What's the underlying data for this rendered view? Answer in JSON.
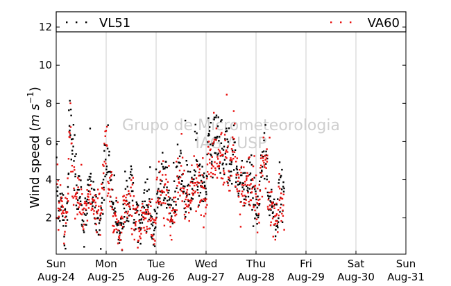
{
  "chart_data": {
    "type": "scatter",
    "ylabel": "Wind speed",
    "ylabel_unit_base": "m s",
    "ylabel_unit_exp": "−1",
    "ylim": [
      0.1,
      12.8
    ],
    "yticks": [
      2,
      4,
      6,
      8,
      10,
      12
    ],
    "xlim": [
      "2014-08-24 00:00",
      "2014-08-31 00:00"
    ],
    "xticks": [
      {
        "day": "Sun",
        "date": "Aug-24"
      },
      {
        "day": "Mon",
        "date": "Aug-25"
      },
      {
        "day": "Tue",
        "date": "Aug-26"
      },
      {
        "day": "Wed",
        "date": "Aug-27"
      },
      {
        "day": "Thu",
        "date": "Aug-28"
      },
      {
        "day": "Fri",
        "date": "Aug-29"
      },
      {
        "day": "Sat",
        "date": "Aug-30"
      },
      {
        "day": "Sun",
        "date": "Aug-31"
      }
    ],
    "grid": "vertical",
    "legend_position": "top",
    "watermark": [
      "Grupo de Micrometeorologia",
      "IAG / USP"
    ],
    "sampling_minutes": 30,
    "series": [
      {
        "name": "VL51",
        "color": "#000000",
        "values": [
          4.4,
          3.0,
          2.5,
          2.6,
          2.9,
          2.5,
          2.1,
          1.3,
          1.7,
          1.8,
          2.7,
          3.9,
          6.3,
          7.3,
          6.4,
          5.8,
          5.7,
          4.9,
          4.3,
          3.8,
          3.1,
          3.0,
          3.1,
          3.4,
          2.3,
          1.9,
          1.4,
          2.3,
          2.4,
          2.5,
          3.0,
          3.5,
          3.1,
          3.2,
          3.0,
          3.4,
          2.7,
          2.3,
          2.3,
          2.0,
          1.8,
          2.1,
          2.0,
          2.7,
          3.2,
          3.8,
          4.3,
          5.5,
          5.4,
          5.2,
          4.5,
          3.9,
          3.8,
          3.6,
          2.7,
          2.2,
          2.2,
          2.5,
          1.6,
          1.2,
          1.4,
          1.4,
          1.2,
          1.8,
          2.0,
          2.4,
          3.2,
          3.0,
          3.1,
          3.2,
          3.3,
          3.6,
          4.2,
          3.5,
          2.1,
          1.6,
          1.8,
          2.1,
          1.7,
          1.6,
          1.4,
          1.9,
          2.3,
          2.7,
          3.3,
          2.8,
          2.8,
          2.9,
          2.5,
          2.1,
          2.5,
          1.8,
          1.2,
          1.2,
          1.2,
          1.6,
          3.2,
          3.5,
          3.2,
          3.6,
          3.7,
          3.7,
          4.6,
          3.7,
          4.1,
          3.8,
          3.7,
          3.2,
          2.6,
          2.5,
          2.6,
          2.4,
          2.4,
          3.0,
          3.2,
          3.6,
          4.5,
          4.6,
          4.8,
          4.7,
          4.2,
          3.4,
          3.2,
          3.6,
          3.1,
          3.6,
          3.3,
          3.1,
          2.9,
          3.6,
          3.5,
          3.0,
          4.1,
          4.9,
          4.3,
          4.2,
          4.1,
          4.2,
          3.6,
          3.5,
          3.6,
          3.7,
          3.8,
          3.1,
          3.6,
          5.4,
          6.6,
          6.8,
          5.1,
          4.7,
          5.2,
          6.1,
          5.8,
          6.0,
          6.0,
          6.4,
          5.8,
          5.4,
          5.9,
          5.2,
          4.8,
          5.6,
          5.8,
          5.6,
          5.4,
          4.9,
          4.3,
          4.8,
          5.1,
          5.3,
          5.8,
          5.2,
          4.5,
          4.5,
          4.2,
          3.8,
          3.4,
          3.6,
          4.1,
          3.8,
          3.2,
          3.6,
          3.8,
          4.2,
          3.9,
          4.2,
          3.6,
          3.9,
          3.4,
          3.0,
          3.1,
          2.8,
          2.6,
          2.5,
          2.6,
          3.5,
          4.4,
          4.7,
          4.8,
          5.4,
          5.2,
          5.0,
          4.2,
          4.1,
          2.9,
          2.5,
          2.9,
          2.6,
          2.1,
          2.6,
          2.0,
          2.3,
          2.5,
          2.4,
          3.1,
          3.7,
          3.3,
          3.2,
          3.2
        ]
      },
      {
        "name": "VA60",
        "color": "#e8110f",
        "values": [
          2.5,
          3.6,
          2.2,
          2.7,
          3.0,
          2.9,
          2.9,
          1.4,
          2.3,
          2.2,
          2.9,
          3.6,
          6.6,
          7.0,
          5.3,
          4.1,
          4.2,
          4.3,
          3.5,
          3.0,
          3.2,
          3.1,
          3.0,
          3.2,
          2.6,
          2.0,
          2.0,
          3.0,
          2.0,
          2.6,
          2.6,
          3.0,
          2.7,
          2.9,
          2.6,
          2.8,
          3.0,
          2.5,
          2.1,
          2.6,
          2.6,
          2.8,
          2.0,
          2.7,
          2.9,
          4.7,
          5.9,
          5.7,
          5.5,
          3.3,
          3.6,
          3.2,
          3.6,
          3.8,
          1.9,
          1.4,
          2.0,
          2.2,
          2.0,
          1.3,
          1.0,
          1.5,
          1.3,
          1.6,
          2.7,
          2.4,
          3.1,
          2.6,
          2.6,
          3.0,
          2.5,
          3.5,
          2.6,
          3.6,
          2.5,
          1.6,
          1.7,
          2.6,
          1.3,
          1.3,
          1.2,
          1.6,
          3.0,
          2.4,
          2.1,
          2.2,
          1.7,
          2.2,
          2.2,
          2.1,
          1.9,
          1.4,
          1.4,
          1.6,
          1.2,
          1.3,
          3.2,
          3.0,
          3.6,
          3.6,
          3.2,
          3.1,
          3.3,
          2.7,
          3.5,
          2.8,
          3.6,
          3.1,
          2.2,
          2.0,
          1.8,
          2.5,
          2.4,
          2.6,
          2.8,
          2.6,
          4.5,
          4.4,
          3.5,
          4.1,
          3.3,
          3.4,
          3.4,
          2.6,
          3.3,
          3.0,
          3.6,
          2.5,
          3.1,
          3.0,
          2.8,
          3.6,
          3.8,
          3.5,
          3.6,
          3.8,
          3.7,
          3.8,
          3.1,
          3.3,
          4.0,
          3.5,
          3.4,
          3.0,
          3.3,
          5.5,
          5.2,
          5.7,
          4.6,
          5.1,
          4.8,
          5.7,
          5.6,
          5.9,
          5.6,
          5.9,
          5.9,
          5.7,
          5.6,
          5.3,
          5.0,
          5.1,
          5.4,
          5.5,
          5.0,
          4.6,
          3.7,
          4.9,
          5.2,
          5.6,
          5.6,
          5.9,
          4.6,
          4.5,
          3.9,
          3.9,
          3.3,
          3.4,
          3.4,
          3.2,
          3.5,
          3.5,
          3.7,
          4.3,
          4.0,
          3.2,
          3.5,
          3.4,
          3.6,
          2.7,
          3.3,
          3.2,
          2.4,
          2.8,
          2.1,
          3.3,
          4.6,
          4.3,
          4.2,
          5.0,
          4.9,
          4.6,
          4.3,
          3.0,
          3.6,
          2.1,
          2.3,
          2.4,
          2.5,
          2.0,
          2.0,
          2.6,
          2.2,
          2.4,
          3.4,
          2.7,
          2.5,
          2.2,
          2.8
        ]
      }
    ]
  }
}
